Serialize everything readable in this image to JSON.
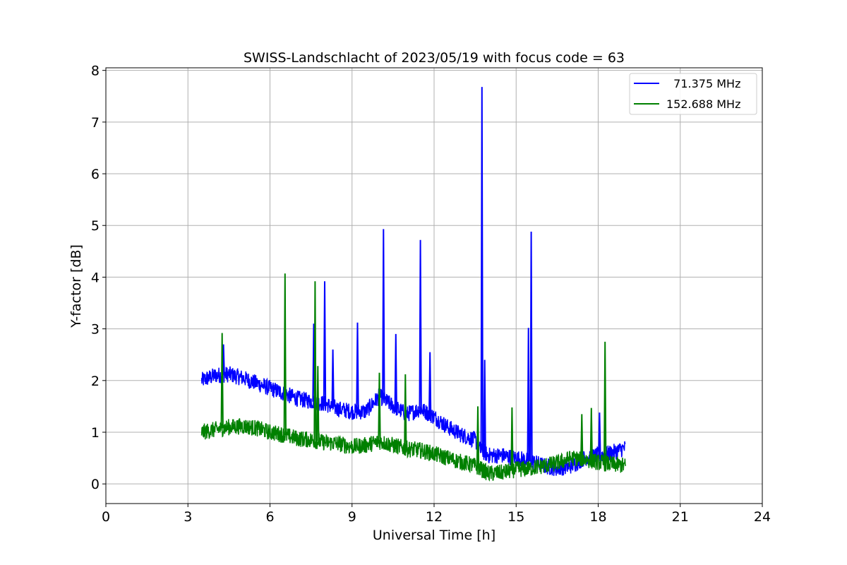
{
  "chart_data": {
    "type": "line",
    "title": "SWISS-Landschlacht of 2023/05/19 with focus code = 63",
    "xlabel": "Universal Time [h]",
    "ylabel": "Y-factor [dB]",
    "xlim": [
      0,
      24
    ],
    "ylim": [
      -0.38,
      8.05
    ],
    "xticks": [
      0,
      3,
      6,
      9,
      12,
      15,
      18,
      21,
      24
    ],
    "yticks": [
      0,
      1,
      2,
      3,
      4,
      5,
      6,
      7,
      8
    ],
    "grid": true,
    "legend_position": "top-right",
    "series": [
      {
        "name": "  71.375 MHz",
        "color": "#0000ff",
        "x": [
          3.5,
          4.0,
          4.5,
          5.0,
          5.5,
          6.0,
          6.5,
          7.0,
          7.5,
          8.0,
          8.5,
          9.0,
          9.5,
          10.0,
          10.5,
          11.0,
          11.5,
          12.0,
          12.5,
          13.0,
          13.5,
          13.7,
          14.0,
          14.5,
          15.0,
          15.5,
          16.0,
          16.5,
          17.0,
          17.5,
          18.0,
          18.5,
          19.0
        ],
        "y": [
          2.0,
          2.1,
          2.12,
          2.05,
          1.95,
          1.85,
          1.75,
          1.65,
          1.6,
          1.55,
          1.45,
          1.4,
          1.4,
          1.7,
          1.5,
          1.35,
          1.45,
          1.3,
          1.1,
          0.95,
          0.85,
          0.65,
          0.55,
          0.55,
          0.5,
          0.45,
          0.35,
          0.3,
          0.35,
          0.5,
          0.55,
          0.6,
          0.7
        ],
        "spikes": [
          {
            "x": 4.3,
            "y": 2.7
          },
          {
            "x": 7.6,
            "y": 3.1
          },
          {
            "x": 8.0,
            "y": 3.92
          },
          {
            "x": 8.3,
            "y": 2.6
          },
          {
            "x": 9.2,
            "y": 3.12
          },
          {
            "x": 10.15,
            "y": 4.93
          },
          {
            "x": 10.6,
            "y": 2.9
          },
          {
            "x": 11.5,
            "y": 4.72
          },
          {
            "x": 11.85,
            "y": 2.55
          },
          {
            "x": 13.75,
            "y": 7.68
          },
          {
            "x": 13.85,
            "y": 2.4
          },
          {
            "x": 15.45,
            "y": 3.02
          },
          {
            "x": 15.55,
            "y": 4.88
          },
          {
            "x": 18.05,
            "y": 1.38
          }
        ]
      },
      {
        "name": "152.688 MHz",
        "color": "#008000",
        "x": [
          3.5,
          4.0,
          4.5,
          5.0,
          5.5,
          6.0,
          6.5,
          7.0,
          7.5,
          8.0,
          8.5,
          9.0,
          9.5,
          10.0,
          10.5,
          11.0,
          11.5,
          12.0,
          12.5,
          13.0,
          13.5,
          14.0,
          14.5,
          15.0,
          15.5,
          16.0,
          16.5,
          17.0,
          17.5,
          18.0,
          18.5,
          19.0
        ],
        "y": [
          1.0,
          1.05,
          1.1,
          1.12,
          1.08,
          1.0,
          0.95,
          0.88,
          0.85,
          0.8,
          0.78,
          0.72,
          0.75,
          0.82,
          0.75,
          0.68,
          0.65,
          0.58,
          0.5,
          0.42,
          0.35,
          0.2,
          0.22,
          0.28,
          0.3,
          0.35,
          0.4,
          0.5,
          0.48,
          0.42,
          0.38,
          0.35
        ],
        "spikes": [
          {
            "x": 4.25,
            "y": 2.92
          },
          {
            "x": 6.55,
            "y": 4.07
          },
          {
            "x": 7.65,
            "y": 3.92
          },
          {
            "x": 7.75,
            "y": 2.28
          },
          {
            "x": 10.0,
            "y": 2.15
          },
          {
            "x": 10.95,
            "y": 2.12
          },
          {
            "x": 13.6,
            "y": 1.5
          },
          {
            "x": 14.85,
            "y": 1.48
          },
          {
            "x": 17.4,
            "y": 1.35
          },
          {
            "x": 17.75,
            "y": 1.47
          },
          {
            "x": 18.25,
            "y": 2.75
          }
        ]
      }
    ]
  }
}
